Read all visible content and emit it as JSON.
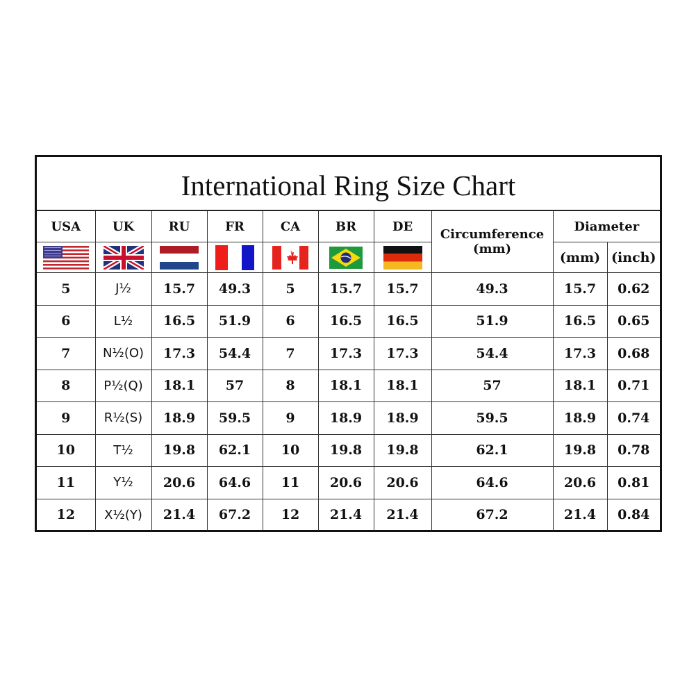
{
  "chart_data": {
    "type": "table",
    "title": "International Ring Size Chart",
    "country_headers": [
      "USA",
      "UK",
      "RU",
      "FR",
      "CA",
      "BR",
      "DE"
    ],
    "circumference_header": "Circumference",
    "circumference_unit": "(mm)",
    "diameter_header": "Diameter",
    "diameter_units": [
      "(mm)",
      "(inch)"
    ],
    "flag_icons": [
      "usa-flag",
      "uk-flag",
      "netherlands-style-flag",
      "france-flag",
      "canada-flag",
      "brazil-flag",
      "germany-flag"
    ],
    "rows": [
      [
        "5",
        "J½",
        "15.7",
        "49.3",
        "5",
        "15.7",
        "15.7",
        "49.3",
        "15.7",
        "0.62"
      ],
      [
        "6",
        "L½",
        "16.5",
        "51.9",
        "6",
        "16.5",
        "16.5",
        "51.9",
        "16.5",
        "0.65"
      ],
      [
        "7",
        "N½(O)",
        "17.3",
        "54.4",
        "7",
        "17.3",
        "17.3",
        "54.4",
        "17.3",
        "0.68"
      ],
      [
        "8",
        "P½(Q)",
        "18.1",
        "57",
        "8",
        "18.1",
        "18.1",
        "57",
        "18.1",
        "0.71"
      ],
      [
        "9",
        "R½(S)",
        "18.9",
        "59.5",
        "9",
        "18.9",
        "18.9",
        "59.5",
        "18.9",
        "0.74"
      ],
      [
        "10",
        "T½",
        "19.8",
        "62.1",
        "10",
        "19.8",
        "19.8",
        "62.1",
        "19.8",
        "0.78"
      ],
      [
        "11",
        "Y½",
        "20.6",
        "64.6",
        "11",
        "20.6",
        "20.6",
        "64.6",
        "20.6",
        "0.81"
      ],
      [
        "12",
        "X½(Y)",
        "21.4",
        "67.2",
        "12",
        "21.4",
        "21.4",
        "67.2",
        "21.4",
        "0.84"
      ]
    ]
  }
}
